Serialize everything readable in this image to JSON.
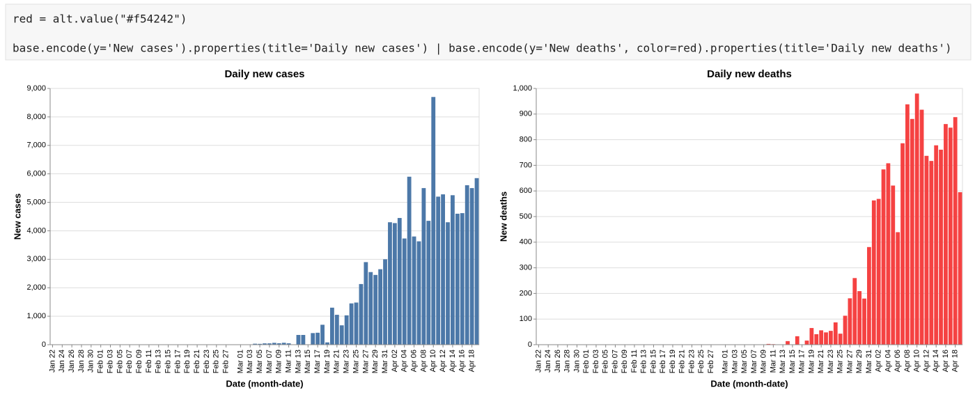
{
  "code": [
    "red = alt.value(\"#f54242\")",
    "base.encode(y='New cases').properties(title='Daily new cases') | base.encode(y='New deaths', color=red).properties(title='Daily new deaths')"
  ],
  "chart_data": [
    {
      "type": "bar",
      "title": "Daily new cases",
      "x_label": "Date (month-date)",
      "y_label": "New cases",
      "color": "#4c78a8",
      "grid": true,
      "categories": [
        "Jan 22",
        null,
        "Jan 24",
        null,
        "Jan 26",
        null,
        "Jan 28",
        null,
        "Jan 30",
        null,
        "Feb 01",
        null,
        "Feb 03",
        null,
        "Feb 05",
        null,
        "Feb 07",
        null,
        "Feb 09",
        null,
        "Feb 11",
        null,
        "Feb 13",
        null,
        "Feb 15",
        null,
        "Feb 17",
        null,
        "Feb 19",
        null,
        "Feb 21",
        null,
        "Feb 23",
        null,
        "Feb 25",
        null,
        "Feb 27",
        null,
        null,
        "Mar 01",
        null,
        "Mar 03",
        null,
        "Mar 05",
        null,
        "Mar 07",
        null,
        "Mar 09",
        null,
        "Mar 11",
        null,
        "Mar 13",
        null,
        "Mar 15",
        null,
        "Mar 17",
        null,
        "Mar 19",
        null,
        "Mar 21",
        null,
        "Mar 23",
        null,
        "Mar 25",
        null,
        "Mar 27",
        null,
        "Mar 29",
        null,
        "Mar 31",
        null,
        "Apr 02",
        null,
        "Apr 04",
        null,
        "Apr 06",
        null,
        "Apr 08",
        null,
        "Apr 10",
        null,
        "Apr 12",
        null,
        "Apr 14",
        null,
        "Apr 16",
        null,
        "Apr 18",
        null
      ],
      "values": [
        0,
        0,
        0,
        0,
        0,
        0,
        0,
        0,
        0,
        2,
        0,
        0,
        0,
        0,
        0,
        0,
        0,
        0,
        0,
        4,
        0,
        0,
        0,
        0,
        0,
        0,
        0,
        0,
        0,
        0,
        0,
        0,
        0,
        0,
        0,
        0,
        3,
        5,
        3,
        12,
        4,
        11,
        34,
        29,
        46,
        46,
        65,
        50,
        67,
        48,
        0,
        342,
        342,
        0,
        407,
        420,
        700,
        80,
        1300,
        1050,
        680,
        1030,
        1450,
        1480,
        2130,
        2900,
        2550,
        2450,
        2650,
        3000,
        4300,
        4270,
        4450,
        3730,
        5900,
        3800,
        3630,
        5500,
        4350,
        8700,
        5200,
        5280,
        4300,
        5250,
        4600,
        4620,
        5600,
        5500,
        5850
      ],
      "ylim": [
        0,
        9000
      ],
      "yticks": [
        0,
        {
          "value": 1000,
          "label": "1,000"
        },
        {
          "value": 2000,
          "label": "2,000"
        },
        {
          "value": 3000,
          "label": "3,000"
        },
        {
          "value": 4000,
          "label": "4,000"
        },
        {
          "value": 5000,
          "label": "5,000"
        },
        {
          "value": 6000,
          "label": "6,000"
        },
        {
          "value": 7000,
          "label": "7,000"
        },
        {
          "value": 8000,
          "label": "8,000"
        },
        {
          "value": 9000,
          "label": "9,000"
        }
      ]
    },
    {
      "type": "bar",
      "title": "Daily new deaths",
      "x_label": "Date (month-date)",
      "y_label": "New deaths",
      "color": "#f54242",
      "grid": true,
      "categories": [
        "Jan 22",
        null,
        "Jan 24",
        null,
        "Jan 26",
        null,
        "Jan 28",
        null,
        "Jan 30",
        null,
        "Feb 01",
        null,
        "Feb 03",
        null,
        "Feb 05",
        null,
        "Feb 07",
        null,
        "Feb 09",
        null,
        "Feb 11",
        null,
        "Feb 13",
        null,
        "Feb 15",
        null,
        "Feb 17",
        null,
        "Feb 19",
        null,
        "Feb 21",
        null,
        "Feb 23",
        null,
        "Feb 25",
        null,
        "Feb 27",
        null,
        null,
        "Mar 01",
        null,
        "Mar 03",
        null,
        "Mar 05",
        null,
        "Mar 07",
        null,
        "Mar 09",
        null,
        "Mar 11",
        null,
        "Mar 13",
        null,
        "Mar 15",
        null,
        "Mar 17",
        null,
        "Mar 19",
        null,
        "Mar 21",
        null,
        "Mar 23",
        null,
        "Mar 25",
        null,
        "Mar 27",
        null,
        "Mar 29",
        null,
        "Mar 31",
        null,
        "Apr 02",
        null,
        "Apr 04",
        null,
        "Apr 06",
        null,
        "Apr 08",
        null,
        "Apr 10",
        null,
        "Apr 12",
        null,
        "Apr 14",
        null,
        "Apr 16",
        null,
        "Apr 18",
        null
      ],
      "values": [
        0,
        0,
        0,
        0,
        0,
        0,
        0,
        0,
        0,
        0,
        0,
        0,
        0,
        0,
        0,
        0,
        0,
        0,
        0,
        0,
        0,
        0,
        0,
        0,
        0,
        0,
        0,
        0,
        0,
        0,
        0,
        0,
        0,
        0,
        0,
        0,
        0,
        0,
        0,
        0,
        0,
        1,
        0,
        1,
        0,
        0,
        0,
        0,
        3,
        2,
        0,
        1,
        14,
        0,
        33,
        0,
        16,
        65,
        41,
        56,
        48,
        54,
        87,
        43,
        113,
        181,
        260,
        209,
        180,
        381,
        563,
        569,
        684,
        708,
        621,
        439,
        786,
        938,
        881,
        980,
        917,
        737,
        717,
        778,
        761,
        861,
        847,
        888,
        595
      ],
      "ylim": [
        0,
        1000
      ],
      "yticks": [
        0,
        100,
        200,
        300,
        400,
        500,
        600,
        700,
        800,
        900,
        {
          "value": 1000,
          "label": "1,000"
        }
      ]
    }
  ]
}
